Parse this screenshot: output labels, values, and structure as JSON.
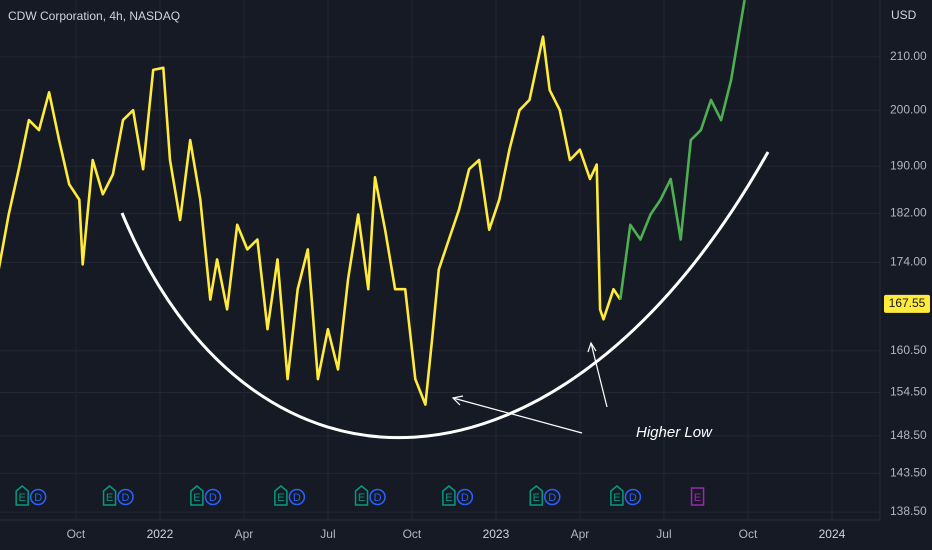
{
  "chart_data": {
    "type": "line",
    "title": "CDW Corporation, 4h, NASDAQ",
    "currency": "USD",
    "annotation": "Higher Low",
    "log_scale": true,
    "grid": true,
    "xlim": [
      2021.524,
      2024.143
    ],
    "ylim": [
      137.5,
      221.2
    ],
    "xticks": [
      {
        "value": 2021.75,
        "label": "Oct"
      },
      {
        "value": 2022.0,
        "label": "2022"
      },
      {
        "value": 2022.25,
        "label": "Apr"
      },
      {
        "value": 2022.5,
        "label": "Jul"
      },
      {
        "value": 2022.75,
        "label": "Oct"
      },
      {
        "value": 2023.0,
        "label": "2023"
      },
      {
        "value": 2023.25,
        "label": "Apr"
      },
      {
        "value": 2023.5,
        "label": "Jul"
      },
      {
        "value": 2023.75,
        "label": "Oct"
      },
      {
        "value": 2024.0,
        "label": "2024"
      }
    ],
    "yticks": [
      {
        "value": 138.5,
        "label": "138.50"
      },
      {
        "value": 143.5,
        "label": "143.50"
      },
      {
        "value": 148.5,
        "label": "148.50"
      },
      {
        "value": 154.5,
        "label": "154.50"
      },
      {
        "value": 160.5,
        "label": "160.50"
      },
      {
        "value": 174,
        "label": "174.00"
      },
      {
        "value": 182,
        "label": "182.00"
      },
      {
        "value": 190,
        "label": "190.00"
      },
      {
        "value": 200,
        "label": "200.00"
      },
      {
        "value": 210,
        "label": "210.00"
      }
    ],
    "last_price": 167.55,
    "series": [
      {
        "color": "#ffeb3b",
        "x": [
          2021.52,
          2021.55,
          2021.58,
          2021.61,
          2021.64,
          2021.67,
          2021.7,
          2021.73,
          2021.76,
          2021.77,
          2021.8,
          2021.83,
          2021.86,
          2021.89,
          2021.92,
          2021.95,
          2021.98,
          2022.01,
          2022.03,
          2022.06,
          2022.09,
          2022.12,
          2022.15,
          2022.17,
          2022.2,
          2022.23,
          2022.26,
          2022.29,
          2022.32,
          2022.35,
          2022.38,
          2022.41,
          2022.44,
          2022.47,
          2022.5,
          2022.53,
          2022.56,
          2022.59,
          2022.62,
          2022.64,
          2022.67,
          2022.7,
          2022.73,
          2022.76,
          2022.79,
          2022.81,
          2022.83,
          2022.86,
          2022.89,
          2022.92,
          2022.95,
          2022.98,
          2023.01,
          2023.04,
          2023.07,
          2023.1,
          2023.14,
          2023.16,
          2023.19,
          2023.22,
          2023.25,
          2023.28,
          2023.3,
          2023.31,
          2023.32,
          2023.35,
          2023.37
        ],
        "values": [
          172.9,
          181.8,
          189.5,
          198.2,
          196.4,
          203.3,
          194.6,
          186.9,
          184.3,
          173.7,
          191.1,
          185.2,
          188.6,
          198.2,
          200.0,
          189.5,
          207.5,
          207.9,
          191.1,
          180.9,
          194.6,
          184.3,
          168.2,
          174.5,
          166.7,
          180.1,
          176.1,
          177.7,
          163.7,
          174.5,
          156.4,
          169.8,
          176.1,
          156.4,
          163.7,
          157.8,
          171.4,
          181.8,
          169.8,
          188.1,
          179.3,
          169.8,
          169.8,
          156.4,
          152.8,
          162.2,
          172.9,
          177.7,
          182.6,
          189.5,
          191.1,
          179.3,
          184.3,
          192.9,
          200.0,
          201.9,
          213.9,
          203.7,
          200.0,
          191.1,
          192.9,
          187.8,
          190.3,
          166.7,
          165.2,
          169.8,
          168.2
        ]
      },
      {
        "color": "#4caf50",
        "x": [
          2023.37,
          2023.4,
          2023.43,
          2023.46,
          2023.49,
          2023.52,
          2023.55,
          2023.58,
          2023.61,
          2023.64,
          2023.67,
          2023.7,
          2023.73,
          2023.74
        ],
        "values": [
          168.2,
          180.1,
          177.7,
          181.8,
          184.3,
          187.8,
          177.7,
          194.6,
          196.4,
          201.9,
          198.2,
          205.6,
          217.2,
          221.2
        ]
      }
    ],
    "earnings_markers": [
      {
        "x": 2021.59,
        "labels": [
          "E",
          "D"
        ]
      },
      {
        "x": 2021.85,
        "labels": [
          "E",
          "D"
        ]
      },
      {
        "x": 2022.11,
        "labels": [
          "E",
          "D"
        ]
      },
      {
        "x": 2022.36,
        "labels": [
          "E",
          "D"
        ]
      },
      {
        "x": 2022.6,
        "labels": [
          "E",
          "D"
        ]
      },
      {
        "x": 2022.86,
        "labels": [
          "E",
          "D"
        ]
      },
      {
        "x": 2023.12,
        "labels": [
          "E",
          "D"
        ]
      },
      {
        "x": 2023.36,
        "labels": [
          "E",
          "D"
        ]
      },
      {
        "x": 2023.6,
        "labels": [
          "E"
        ],
        "color": "#9c27b0"
      }
    ]
  }
}
